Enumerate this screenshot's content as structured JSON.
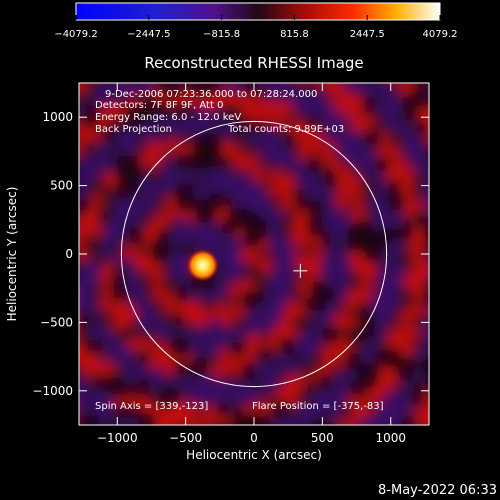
{
  "colorbar": {
    "ticks": [
      "−4079.2",
      "−2447.5",
      "−815.8",
      "815.8",
      "2447.5",
      "4079.2"
    ],
    "tick_values": [
      -4079.2,
      -2447.5,
      -815.8,
      815.8,
      2447.5,
      4079.2
    ],
    "range": [
      -4079.2,
      4079.2
    ]
  },
  "title": "Reconstructed RHESSI Image",
  "info": {
    "line1": "9-Dec-2006 07:23:36.000 to 07:28:24.000",
    "line2": "Detectors: 7F 8F 9F, Att 0",
    "line3": "Energy Range: 6.0 - 12.0 keV",
    "line4": "Back Projection",
    "line5": "Total counts: 9.89E+03"
  },
  "footer_left": "Spin Axis = [339,-123]",
  "footer_right": "Flare Position = [-375,-83]",
  "timestamp": "8-May-2022 06:33",
  "chart_data": {
    "type": "heatmap",
    "title": "Reconstructed RHESSI Image",
    "xlabel": "Heliocentric X (arcsec)",
    "ylabel": "Heliocentric Y (arcsec)",
    "xlim": [
      -1280,
      1280
    ],
    "ylim": [
      -1250,
      1250
    ],
    "xticks": [
      -1000,
      -500,
      0,
      500,
      1000
    ],
    "xtick_labels": [
      "−1000",
      "−500",
      "0",
      "500",
      "1000"
    ],
    "yticks": [
      -1000,
      -500,
      0,
      500,
      1000
    ],
    "ytick_labels": [
      "−1000",
      "−500",
      "0",
      "500",
      "1000"
    ],
    "flare_position": [
      -375,
      -83
    ],
    "spin_axis": [
      339,
      -123
    ],
    "solar_limb_radius": 970,
    "colorbar_range": [
      -4079.2,
      4079.2
    ],
    "colors": {
      "negative": "#3a0a6a",
      "neutral": "#1a0410",
      "positive": "#c81010",
      "peak": "#ffffa0"
    }
  }
}
